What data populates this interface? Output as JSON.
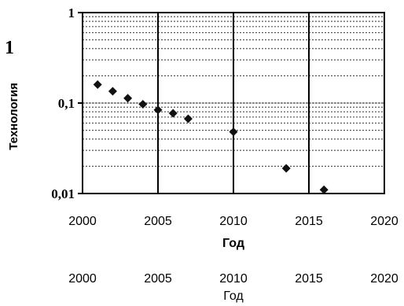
{
  "chart_data": {
    "type": "scatter",
    "ylabel": "Технология",
    "xlabel": "Год",
    "xlabel_repeat": "Год",
    "side_label": "1",
    "x_ticks": [
      "2000",
      "2005",
      "2010",
      "2015",
      "2020"
    ],
    "x_ticks_repeat": [
      "2000",
      "2005",
      "2010",
      "2015",
      "2020"
    ],
    "y_ticks": [
      "1",
      "0,1",
      "0,01"
    ],
    "xlim": [
      2000,
      2020
    ],
    "ylim": [
      0.01,
      1
    ],
    "y_scale": "log",
    "grid": true,
    "marker_color": "#111111",
    "points": [
      {
        "x": 2001,
        "y": 0.16
      },
      {
        "x": 2002,
        "y": 0.135
      },
      {
        "x": 2003,
        "y": 0.113
      },
      {
        "x": 2004,
        "y": 0.097
      },
      {
        "x": 2005,
        "y": 0.084
      },
      {
        "x": 2006,
        "y": 0.077
      },
      {
        "x": 2007,
        "y": 0.067
      },
      {
        "x": 2010,
        "y": 0.048
      },
      {
        "x": 2013.5,
        "y": 0.019
      },
      {
        "x": 2016,
        "y": 0.011
      }
    ]
  }
}
